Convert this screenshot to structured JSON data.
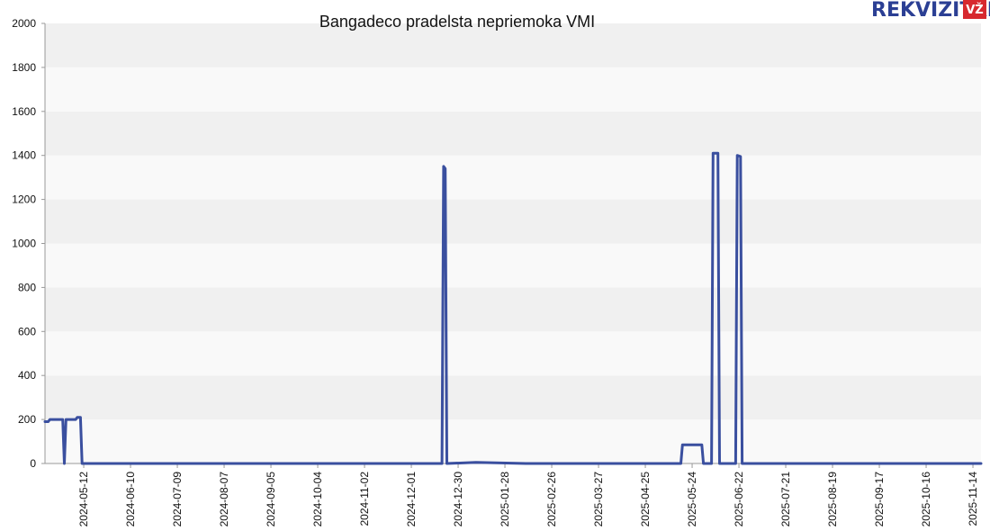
{
  "brand": {
    "name": "REKVIZITAI",
    "badge": "VŽ",
    "name_color": "#2b3f94",
    "badge_color": "#d7282f"
  },
  "chart_data": {
    "type": "line",
    "title": "Bangadeco pradelsta nepriemoka VMI",
    "xlabel": "",
    "ylabel": "",
    "ylim": [
      0,
      2000
    ],
    "xlim": [
      "2024-04-18",
      "2025-11-19"
    ],
    "yticks": [
      0,
      200,
      400,
      600,
      800,
      1000,
      1200,
      1400,
      1600,
      1800,
      2000
    ],
    "xticks": [
      "2024-05-12",
      "2024-06-10",
      "2024-07-09",
      "2024-08-07",
      "2024-09-05",
      "2024-10-04",
      "2024-11-02",
      "2024-12-01",
      "2024-12-30",
      "2025-01-28",
      "2025-02-26",
      "2025-03-27",
      "2025-04-25",
      "2025-05-24",
      "2025-06-22",
      "2025-07-21",
      "2025-08-19",
      "2025-09-17",
      "2025-10-16",
      "2025-11-14"
    ],
    "grid": "horizontal bands",
    "line_color": "#3a4f9f",
    "series": [
      {
        "name": "",
        "x": [
          "2024-04-18",
          "2024-04-20",
          "2024-04-21",
          "2024-04-29",
          "2024-04-30",
          "2024-05-01",
          "2024-05-07",
          "2024-05-08",
          "2024-05-10",
          "2024-05-11",
          "2024-05-12",
          "2024-12-20",
          "2024-12-21",
          "2024-12-22",
          "2024-12-23",
          "2025-01-10",
          "2025-02-10",
          "2025-05-17",
          "2025-05-18",
          "2025-05-30",
          "2025-05-31",
          "2025-06-05",
          "2025-06-06",
          "2025-06-09",
          "2025-06-10",
          "2025-06-20",
          "2025-06-21",
          "2025-06-23",
          "2025-06-24",
          "2025-11-19"
        ],
        "y": [
          190,
          190,
          200,
          200,
          0,
          200,
          200,
          210,
          210,
          0,
          0,
          0,
          1350,
          1340,
          0,
          5,
          0,
          0,
          85,
          85,
          0,
          0,
          1410,
          1410,
          0,
          0,
          1400,
          1395,
          0,
          0
        ]
      }
    ]
  }
}
